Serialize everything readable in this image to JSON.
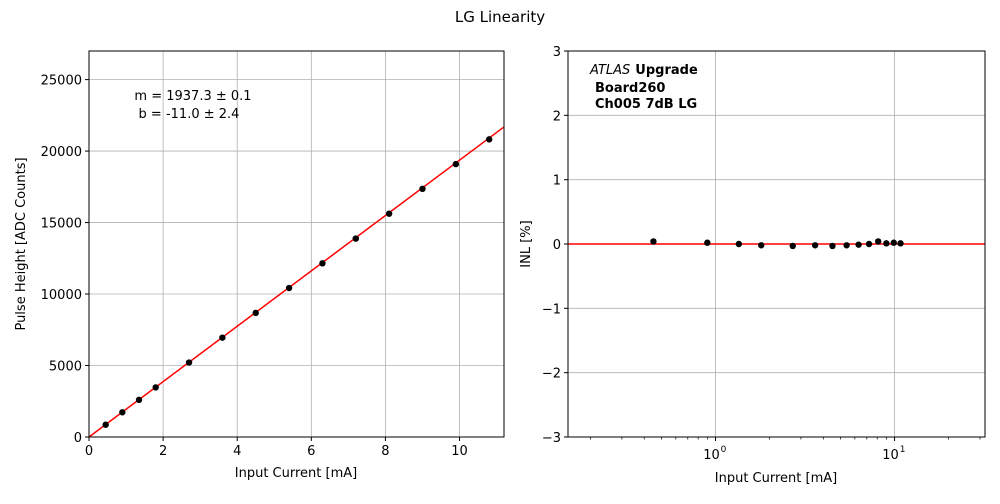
{
  "figure": {
    "title": "LG Linearity"
  },
  "chart_data": [
    {
      "type": "scatter",
      "xlabel": "Input Current [mA]",
      "ylabel": "Pulse Height [ADC Counts]",
      "xlim": [
        0,
        11.2
      ],
      "ylim": [
        0,
        27000
      ],
      "xticks": [
        0,
        2,
        4,
        6,
        8,
        10
      ],
      "yticks": [
        0,
        5000,
        10000,
        15000,
        20000,
        25000
      ],
      "xtick_labels": [
        "0",
        "2",
        "4",
        "6",
        "8",
        "10"
      ],
      "ytick_labels": [
        "0",
        "5000",
        "10000",
        "15000",
        "20000",
        "25000"
      ],
      "grid": true,
      "series": [
        {
          "kind": "points",
          "color": "#000000",
          "x": [
            0.45,
            0.9,
            1.35,
            1.8,
            2.7,
            3.6,
            4.5,
            5.4,
            6.3,
            7.2,
            8.1,
            9.0,
            9.9,
            10.8
          ],
          "y": [
            860,
            1730,
            2600,
            3470,
            5210,
            6950,
            8680,
            10420,
            12150,
            13880,
            15620,
            17360,
            19090,
            20820
          ]
        },
        {
          "kind": "fit-line",
          "color": "#ff0000",
          "slope": 1937.3,
          "intercept": -11.0
        }
      ],
      "annotations": [
        "m = 1937.3 ± 0.1",
        "b = -11.0 ± 2.4"
      ]
    },
    {
      "type": "scatter",
      "xlabel": "Input Current [mA]",
      "ylabel": "INL [%]",
      "xscale": "log",
      "xlim": [
        0.15,
        32
      ],
      "ylim": [
        -3,
        3
      ],
      "xticks": [
        1,
        10
      ],
      "xtick_labels": [
        {
          "base": "10",
          "exp": "0"
        },
        {
          "base": "10",
          "exp": "1"
        }
      ],
      "yticks": [
        -3,
        -2,
        -1,
        0,
        1,
        2,
        3
      ],
      "ytick_labels": [
        "−3",
        "−2",
        "−1",
        "0",
        "1",
        "2",
        "3"
      ],
      "grid": true,
      "series": [
        {
          "kind": "points",
          "color": "#000000",
          "x": [
            0.45,
            0.9,
            1.35,
            1.8,
            2.7,
            3.6,
            4.5,
            5.4,
            6.3,
            7.2,
            8.1,
            9.0,
            9.9,
            10.8
          ],
          "y": [
            0.04,
            0.02,
            0.0,
            -0.02,
            -0.03,
            -0.02,
            -0.03,
            -0.02,
            -0.01,
            0.0,
            0.04,
            0.01,
            0.02,
            0.01
          ]
        },
        {
          "kind": "hline",
          "color": "#ff0000",
          "y": 0
        }
      ],
      "annotation": {
        "experiment_italic": "ATLAS",
        "experiment_bold": "Upgrade",
        "board": "Board260",
        "channel": "Ch005 7dB LG"
      }
    }
  ]
}
